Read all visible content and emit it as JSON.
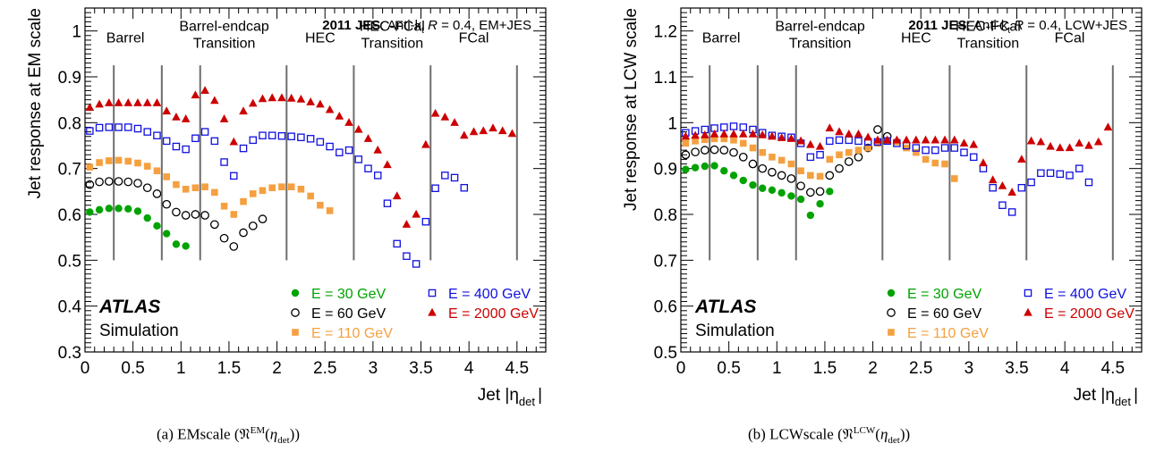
{
  "chart_data": [
    {
      "type": "scatter",
      "caption": "(a) EMscale",
      "caption_sym_sup": "EM",
      "caption_sym_sub": "det",
      "header_bold": "2011 JES",
      "header_text": "Anti-k",
      "header_sub": "t",
      "header_r": "R",
      "header_tail": "= 0.4, EM+JES",
      "xlabel": "Jet |η",
      "xlabel_sub": "det",
      "ylabel": "Jet response at EM scale",
      "xlim": [
        0,
        4.8
      ],
      "ylim": [
        0.3,
        1.05
      ],
      "xticks": [
        "0",
        "0.5",
        "1",
        "1.5",
        "2",
        "2.5",
        "3",
        "3.5",
        "4",
        "4.5"
      ],
      "yticks": [
        "0.3",
        "0.4",
        "0.5",
        "0.6",
        "0.7",
        "0.8",
        "0.9",
        "1"
      ],
      "ytick_values": [
        0.3,
        0.4,
        0.5,
        0.6,
        0.7,
        0.8,
        0.9,
        1.0
      ],
      "region_lines": [
        0.3,
        0.8,
        1.2,
        2.1,
        2.8,
        3.6,
        4.5
      ],
      "region_line_range": [
        0.5,
        0.925
      ],
      "regions": [
        {
          "lines": [
            "Barrel"
          ],
          "x": 0.42,
          "y": 0.975
        },
        {
          "lines": [
            "Barrel-endcap",
            "Transition"
          ],
          "x": 1.45,
          "y": 1.0
        },
        {
          "lines": [
            "HEC"
          ],
          "x": 2.45,
          "y": 0.975
        },
        {
          "lines": [
            "HEC-FCal",
            "Transition"
          ],
          "x": 3.2,
          "y": 1.0
        },
        {
          "lines": [
            "FCal"
          ],
          "x": 4.05,
          "y": 0.975
        }
      ],
      "atlas": "ATLAS",
      "simulation": "Simulation",
      "series": [
        {
          "name": "E = 30 GeV",
          "color": "#00a300",
          "marker": "circle",
          "x": [
            0.05,
            0.15,
            0.25,
            0.35,
            0.45,
            0.55,
            0.65,
            0.75,
            0.85,
            0.95,
            1.05
          ],
          "y": [
            0.605,
            0.61,
            0.613,
            0.613,
            0.612,
            0.607,
            0.592,
            0.575,
            0.558,
            0.535,
            0.531
          ]
        },
        {
          "name": "E = 60 GeV",
          "color": "#000000",
          "marker": "open-circle",
          "x": [
            0.05,
            0.15,
            0.25,
            0.35,
            0.45,
            0.55,
            0.65,
            0.75,
            0.85,
            0.95,
            1.05,
            1.15,
            1.25,
            1.35,
            1.45,
            1.55,
            1.65,
            1.75,
            1.85
          ],
          "y": [
            0.665,
            0.671,
            0.672,
            0.672,
            0.671,
            0.668,
            0.658,
            0.645,
            0.622,
            0.605,
            0.598,
            0.6,
            0.598,
            0.578,
            0.548,
            0.53,
            0.56,
            0.575,
            0.59
          ]
        },
        {
          "name": "E = 110 GeV",
          "color": "#f5a040",
          "marker": "square",
          "x": [
            0.05,
            0.15,
            0.25,
            0.35,
            0.45,
            0.55,
            0.65,
            0.75,
            0.85,
            0.95,
            1.05,
            1.15,
            1.25,
            1.35,
            1.45,
            1.55,
            1.65,
            1.75,
            1.85,
            1.95,
            2.05,
            2.15,
            2.25,
            2.35,
            2.45,
            2.55
          ],
          "y": [
            0.703,
            0.713,
            0.717,
            0.718,
            0.716,
            0.712,
            0.705,
            0.695,
            0.682,
            0.665,
            0.655,
            0.658,
            0.66,
            0.648,
            0.618,
            0.6,
            0.628,
            0.645,
            0.652,
            0.658,
            0.66,
            0.66,
            0.655,
            0.64,
            0.62,
            0.608
          ]
        },
        {
          "name": "E = 400 GeV",
          "color": "#1010e0",
          "marker": "open-square",
          "x": [
            0.05,
            0.15,
            0.25,
            0.35,
            0.45,
            0.55,
            0.65,
            0.75,
            0.85,
            0.95,
            1.05,
            1.15,
            1.25,
            1.35,
            1.45,
            1.55,
            1.65,
            1.75,
            1.85,
            1.95,
            2.05,
            2.15,
            2.25,
            2.35,
            2.45,
            2.55,
            2.65,
            2.75,
            2.85,
            2.95,
            3.05,
            3.15,
            3.25,
            3.35,
            3.45,
            3.55,
            3.65,
            3.75,
            3.85,
            3.95
          ],
          "y": [
            0.782,
            0.789,
            0.79,
            0.79,
            0.79,
            0.787,
            0.78,
            0.772,
            0.76,
            0.748,
            0.742,
            0.766,
            0.78,
            0.76,
            0.714,
            0.684,
            0.744,
            0.762,
            0.772,
            0.772,
            0.771,
            0.77,
            0.768,
            0.765,
            0.758,
            0.748,
            0.735,
            0.74,
            0.72,
            0.7,
            0.685,
            0.624,
            0.536,
            0.509,
            0.492,
            0.584,
            0.657,
            0.685,
            0.68,
            0.658
          ]
        },
        {
          "name": "E = 2000 GeV",
          "color": "#cc0000",
          "marker": "triangle",
          "x": [
            0.05,
            0.15,
            0.25,
            0.35,
            0.45,
            0.55,
            0.65,
            0.75,
            0.85,
            0.95,
            1.05,
            1.15,
            1.25,
            1.35,
            1.45,
            1.55,
            1.65,
            1.75,
            1.85,
            1.95,
            2.05,
            2.15,
            2.25,
            2.35,
            2.45,
            2.55,
            2.65,
            2.75,
            2.85,
            2.95,
            3.05,
            3.15,
            3.25,
            3.35,
            3.45,
            3.55,
            3.65,
            3.75,
            3.85,
            3.95,
            4.05,
            4.15,
            4.25,
            4.35,
            4.45
          ],
          "y": [
            0.833,
            0.84,
            0.843,
            0.843,
            0.843,
            0.843,
            0.843,
            0.843,
            0.825,
            0.812,
            0.808,
            0.86,
            0.87,
            0.848,
            0.808,
            0.758,
            0.825,
            0.842,
            0.852,
            0.854,
            0.854,
            0.853,
            0.851,
            0.845,
            0.84,
            0.828,
            0.814,
            0.8,
            0.785,
            0.765,
            0.74,
            0.708,
            0.64,
            0.578,
            0.6,
            0.752,
            0.82,
            0.812,
            0.8,
            0.772,
            0.78,
            0.782,
            0.788,
            0.782,
            0.776
          ]
        }
      ]
    },
    {
      "type": "scatter",
      "caption": "(b) LCWscale",
      "caption_sym_sup": "LCW",
      "caption_sym_sub": "det",
      "header_bold": "2011 JES",
      "header_text": "Anti-k",
      "header_sub": "t",
      "header_r": "R",
      "header_tail": "= 0.4, LCW+JES",
      "xlabel": "Jet |η",
      "xlabel_sub": "det",
      "ylabel": "Jet response at LCW scale",
      "xlim": [
        0,
        4.8
      ],
      "ylim": [
        0.5,
        1.25
      ],
      "xticks": [
        "0",
        "0.5",
        "1",
        "1.5",
        "2",
        "2.5",
        "3",
        "3.5",
        "4",
        "4.5"
      ],
      "yticks": [
        "0.5",
        "0.6",
        "0.7",
        "0.8",
        "0.9",
        "1",
        "1.1",
        "1.2"
      ],
      "ytick_values": [
        0.5,
        0.6,
        0.7,
        0.8,
        0.9,
        1.0,
        1.1,
        1.2
      ],
      "region_lines": [
        0.3,
        0.8,
        1.2,
        2.1,
        2.8,
        3.6,
        4.5
      ],
      "region_line_range": [
        0.7,
        1.125
      ],
      "regions": [
        {
          "lines": [
            "Barrel"
          ],
          "x": 0.42,
          "y": 1.175
        },
        {
          "lines": [
            "Barrel-endcap",
            "Transition"
          ],
          "x": 1.45,
          "y": 1.2
        },
        {
          "lines": [
            "HEC"
          ],
          "x": 2.45,
          "y": 1.175
        },
        {
          "lines": [
            "HEC-FCal",
            "Transition"
          ],
          "x": 3.2,
          "y": 1.2
        },
        {
          "lines": [
            "FCal"
          ],
          "x": 4.05,
          "y": 1.175
        }
      ],
      "atlas": "ATLAS",
      "simulation": "Simulation",
      "series": [
        {
          "name": "E = 30 GeV",
          "color": "#00a300",
          "marker": "circle",
          "x": [
            0.05,
            0.15,
            0.25,
            0.35,
            0.45,
            0.55,
            0.65,
            0.75,
            0.85,
            0.95,
            1.05,
            1.15,
            1.25,
            1.35,
            1.45,
            1.55
          ],
          "y": [
            0.898,
            0.902,
            0.905,
            0.906,
            0.895,
            0.885,
            0.874,
            0.864,
            0.857,
            0.853,
            0.847,
            0.84,
            0.833,
            0.798,
            0.823,
            0.85
          ]
        },
        {
          "name": "E = 60 GeV",
          "color": "#000000",
          "marker": "open-circle",
          "x": [
            0.05,
            0.15,
            0.25,
            0.35,
            0.45,
            0.55,
            0.65,
            0.75,
            0.85,
            0.95,
            1.05,
            1.15,
            1.25,
            1.35,
            1.45,
            1.55,
            1.65,
            1.75,
            1.85,
            1.95,
            2.05,
            2.15
          ],
          "y": [
            0.93,
            0.936,
            0.94,
            0.941,
            0.94,
            0.935,
            0.925,
            0.91,
            0.9,
            0.892,
            0.885,
            0.878,
            0.862,
            0.848,
            0.85,
            0.885,
            0.9,
            0.915,
            0.925,
            0.945,
            0.985,
            0.97
          ]
        },
        {
          "name": "E = 110 GeV",
          "color": "#f5a040",
          "marker": "square",
          "x": [
            0.05,
            0.15,
            0.25,
            0.35,
            0.45,
            0.55,
            0.65,
            0.75,
            0.85,
            0.95,
            1.05,
            1.15,
            1.25,
            1.35,
            1.45,
            1.55,
            1.65,
            1.75,
            1.85,
            1.95,
            2.05,
            2.15,
            2.25,
            2.35,
            2.45,
            2.55,
            2.65,
            2.75,
            2.85
          ],
          "y": [
            0.955,
            0.96,
            0.963,
            0.965,
            0.965,
            0.962,
            0.955,
            0.945,
            0.935,
            0.925,
            0.918,
            0.91,
            0.895,
            0.885,
            0.883,
            0.92,
            0.93,
            0.935,
            0.94,
            0.945,
            0.955,
            0.96,
            0.958,
            0.945,
            0.935,
            0.92,
            0.912,
            0.91,
            0.878
          ]
        },
        {
          "name": "E = 400 GeV",
          "color": "#1010e0",
          "marker": "open-square",
          "x": [
            0.05,
            0.15,
            0.25,
            0.35,
            0.45,
            0.55,
            0.65,
            0.75,
            0.85,
            0.95,
            1.05,
            1.15,
            1.25,
            1.35,
            1.45,
            1.55,
            1.65,
            1.75,
            1.85,
            1.95,
            2.05,
            2.15,
            2.25,
            2.35,
            2.45,
            2.55,
            2.65,
            2.75,
            2.85,
            2.95,
            3.05,
            3.15,
            3.25,
            3.35,
            3.45,
            3.55,
            3.65,
            3.75,
            3.85,
            3.95,
            4.05,
            4.15,
            4.25
          ],
          "y": [
            0.978,
            0.982,
            0.985,
            0.988,
            0.99,
            0.992,
            0.99,
            0.985,
            0.978,
            0.972,
            0.97,
            0.968,
            0.955,
            0.925,
            0.93,
            0.96,
            0.962,
            0.962,
            0.96,
            0.958,
            0.958,
            0.96,
            0.955,
            0.95,
            0.945,
            0.94,
            0.94,
            0.945,
            0.945,
            0.935,
            0.925,
            0.9,
            0.858,
            0.82,
            0.805,
            0.858,
            0.87,
            0.89,
            0.89,
            0.888,
            0.885,
            0.9,
            0.87
          ]
        },
        {
          "name": "E = 2000 GeV",
          "color": "#cc0000",
          "marker": "triangle",
          "x": [
            0.05,
            0.15,
            0.25,
            0.35,
            0.45,
            0.55,
            0.65,
            0.75,
            0.85,
            0.95,
            1.05,
            1.15,
            1.25,
            1.35,
            1.45,
            1.55,
            1.65,
            1.75,
            1.85,
            1.95,
            2.05,
            2.15,
            2.25,
            2.35,
            2.45,
            2.55,
            2.65,
            2.75,
            2.85,
            2.95,
            3.05,
            3.15,
            3.25,
            3.35,
            3.45,
            3.55,
            3.65,
            3.75,
            3.85,
            3.95,
            4.05,
            4.15,
            4.25,
            4.35,
            4.45
          ],
          "y": [
            0.97,
            0.972,
            0.973,
            0.975,
            0.975,
            0.975,
            0.975,
            0.975,
            0.973,
            0.97,
            0.967,
            0.965,
            0.96,
            0.952,
            0.948,
            0.988,
            0.98,
            0.975,
            0.975,
            0.968,
            0.962,
            0.962,
            0.962,
            0.962,
            0.962,
            0.962,
            0.962,
            0.962,
            0.962,
            0.955,
            0.952,
            0.912,
            0.875,
            0.862,
            0.848,
            0.92,
            0.96,
            0.958,
            0.948,
            0.945,
            0.945,
            0.955,
            0.95,
            0.958,
            0.99
          ]
        }
      ]
    }
  ]
}
